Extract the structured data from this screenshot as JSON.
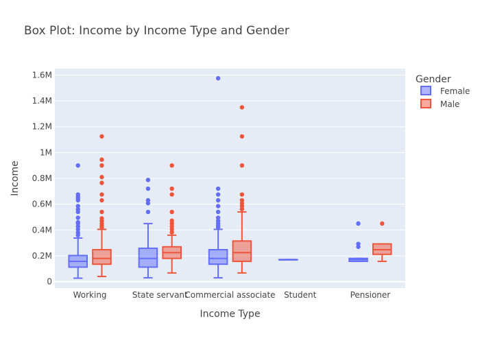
{
  "chart_data": {
    "type": "box",
    "title": "Box Plot: Income by Income Type and Gender",
    "xlabel": "Income Type",
    "ylabel": "Income",
    "categories": [
      "Working",
      "State servant",
      "Commercial associate",
      "Student",
      "Pensioner"
    ],
    "y_ticks": [
      {
        "value": 0,
        "label": "0"
      },
      {
        "value": 200000,
        "label": "0.2M"
      },
      {
        "value": 400000,
        "label": "0.4M"
      },
      {
        "value": 600000,
        "label": "0.6M"
      },
      {
        "value": 800000,
        "label": "0.8M"
      },
      {
        "value": 1000000,
        "label": "1M"
      },
      {
        "value": 1200000,
        "label": "1.2M"
      },
      {
        "value": 1400000,
        "label": "1.4M"
      },
      {
        "value": 1600000,
        "label": "1.6M"
      }
    ],
    "ylim": [
      -50000,
      1650000
    ],
    "grid": true,
    "legend": {
      "title": "Gender",
      "placement": "top-right"
    },
    "series": [
      {
        "name": "Female",
        "color": "#636efa",
        "boxes": [
          {
            "category": "Working",
            "q1": 112500,
            "median": 157500,
            "q3": 202500,
            "lowerfence": 27000,
            "upperfence": 337500,
            "outliers": [
              360000,
              380000,
              405000,
              427500,
              450000,
              460000,
              495000,
              540000,
              560000,
              585000,
              630000,
              645000,
              660000,
              675000,
              900000
            ]
          },
          {
            "category": "State servant",
            "q1": 112500,
            "median": 180000,
            "q3": 258750,
            "lowerfence": 30000,
            "upperfence": 450000,
            "outliers": [
              540000,
              607500,
              630000,
              720000,
              787500
            ]
          },
          {
            "category": "Commercial associate",
            "q1": 135000,
            "median": 180000,
            "q3": 247500,
            "lowerfence": 30000,
            "upperfence": 405000,
            "outliers": [
              420000,
              435000,
              450000,
              470000,
              495000,
              540000,
              585000,
              630000,
              675000,
              720000,
              1575000
            ]
          },
          {
            "category": "Student",
            "q1": 171000,
            "median": 171000,
            "q3": 171000,
            "lowerfence": 171000,
            "upperfence": 171000,
            "outliers": []
          },
          {
            "category": "Pensioner",
            "q1": 157500,
            "median": 171000,
            "q3": 180000,
            "lowerfence": 157500,
            "upperfence": 180000,
            "outliers": [
              270000,
              292500,
              450000
            ]
          }
        ]
      },
      {
        "name": "Male",
        "color": "#ef553b",
        "boxes": [
          {
            "category": "Working",
            "q1": 135000,
            "median": 180000,
            "q3": 247500,
            "lowerfence": 40500,
            "upperfence": 405000,
            "outliers": [
              420000,
              435000,
              450000,
              470000,
              490000,
              540000,
              630000,
              675000,
              765000,
              810000,
              900000,
              945000,
              1125000
            ]
          },
          {
            "category": "State servant",
            "q1": 180000,
            "median": 225000,
            "q3": 270000,
            "lowerfence": 67500,
            "upperfence": 360000,
            "outliers": [
              382500,
              405000,
              427500,
              450000,
              472500,
              540000,
              675000,
              720000,
              900000
            ]
          },
          {
            "category": "Commercial associate",
            "q1": 157500,
            "median": 225000,
            "q3": 315000,
            "lowerfence": 67500,
            "upperfence": 540000,
            "outliers": [
              562500,
              585000,
              607500,
              630000,
              675000,
              900000,
              1125000,
              1350000
            ]
          },
          {
            "category": "Pensioner",
            "q1": 211500,
            "median": 247500,
            "q3": 292500,
            "lowerfence": 157500,
            "upperfence": 292500,
            "outliers": [
              450000
            ]
          }
        ]
      }
    ]
  }
}
